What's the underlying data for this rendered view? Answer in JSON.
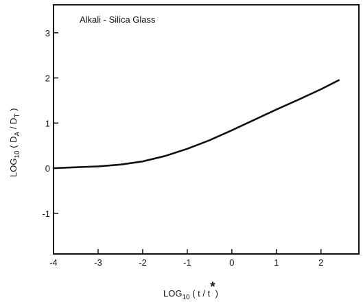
{
  "chart_data": {
    "type": "line",
    "title": "Alkali - Silica Glass",
    "xlabel": {
      "base": "LOG",
      "sub": "10",
      "rest": " ( t / t",
      "sup": "*",
      "close": ")"
    },
    "ylabel": {
      "base": "LOG",
      "sub": "10",
      "open": " ( D",
      "sub_a": "A",
      "slash": " / D",
      "sub_t": "T",
      "close": " )"
    },
    "xlim": [
      -4,
      2.85
    ],
    "ylim": [
      -1.9,
      3.62
    ],
    "x_ticks": [
      -4,
      -3,
      -2,
      -1,
      0,
      1,
      2
    ],
    "x_tick_labels": [
      "-4",
      "-3",
      "-2",
      "-1",
      "0",
      "1",
      "2"
    ],
    "y_ticks": [
      -1,
      0,
      1,
      2,
      3
    ],
    "y_tick_labels": [
      "-1",
      "0",
      "1",
      "2",
      "3"
    ],
    "grid": false,
    "series": [
      {
        "x": [
          -4.0,
          -3.5,
          -3.0,
          -2.5,
          -2.0,
          -1.5,
          -1.0,
          -0.5,
          0.0,
          0.5,
          1.0,
          1.5,
          2.0,
          2.4
        ],
        "y": [
          0.0,
          0.02,
          0.04,
          0.08,
          0.15,
          0.27,
          0.43,
          0.62,
          0.84,
          1.07,
          1.3,
          1.52,
          1.75,
          1.95
        ]
      }
    ]
  }
}
